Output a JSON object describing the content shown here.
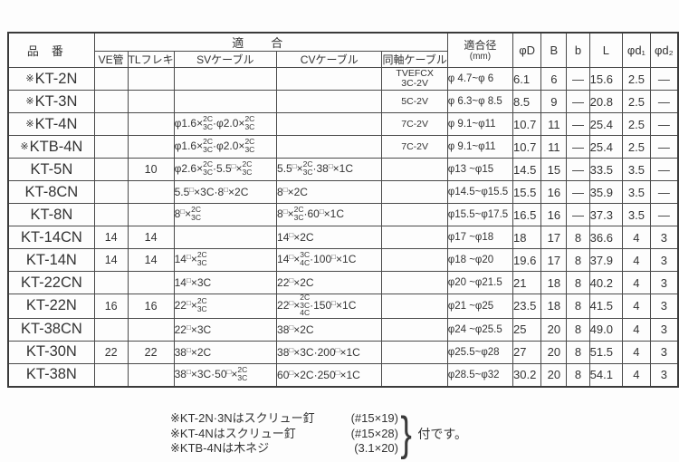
{
  "header": {
    "hinban": "品番",
    "tekigo": "適合",
    "sub": [
      "VE管",
      "TLフレキ",
      "SVケーブル",
      "CVケーブル",
      "同軸ケーブル"
    ],
    "dia_line1": "適合径",
    "dia_line2": "(mm)",
    "cols": [
      "φD",
      "B",
      "b",
      "L",
      "φd₁",
      "φd₂"
    ]
  },
  "rows": [
    [
      "※KT-2N",
      "",
      "",
      "",
      "",
      "TVEFCX\n3C-2V",
      "φ 4.7~φ 6",
      "6.1",
      "6",
      "—",
      "15.6",
      "2.5",
      "—"
    ],
    [
      "※KT-3N",
      "",
      "",
      "",
      "",
      "5C-2V",
      "φ 6.3~φ 8.5",
      "8.5",
      "9",
      "—",
      "20.8",
      "2.5",
      "—"
    ],
    [
      "※KT-4N",
      "",
      "",
      "φ1.6×[2C|3C]·φ2.0×[2C|3C]",
      "",
      "7C-2V",
      "φ 9.1~φ11",
      "10.7",
      "11",
      "—",
      "25.4",
      "2.5",
      "—"
    ],
    [
      "※KTB-4N",
      "",
      "",
      "φ1.6×[2C|3C]·φ2.0×[2C|3C]",
      "",
      "7C-2V",
      "φ 9.1~φ11",
      "10.7",
      "11",
      "—",
      "25.4",
      "2.5",
      "—"
    ],
    [
      "KT-5N",
      "",
      "10",
      "φ2.6×[2C|3C]·5.5□×[2C|3C]",
      "5.5□×[2C|3C]·38□×1C",
      "",
      "φ13 ~φ15",
      "14.5",
      "15",
      "—",
      "33.5",
      "3.5",
      "—"
    ],
    [
      "KT-8CN",
      "",
      "",
      "5.5□×3C·8□×2C",
      "8□×2C",
      "",
      "φ14.5~φ15.5",
      "15.5",
      "16",
      "—",
      "35.9",
      "3.5",
      "—"
    ],
    [
      "KT-8N",
      "",
      "",
      "8□×[2C|3C]",
      "8□×[2C|3C]·60□×1C",
      "",
      "φ15.5~φ17.5",
      "16.5",
      "16",
      "—",
      "37.3",
      "3.5",
      "—"
    ],
    [
      "KT-14CN",
      "14",
      "14",
      "",
      "14□×2C",
      "",
      "φ17 ~φ18",
      "18",
      "17",
      "8",
      "36.6",
      "4",
      "3"
    ],
    [
      "KT-14N",
      "14",
      "14",
      "14□×[2C|3C]",
      "14□×[3C|4C]·100□×1C",
      "",
      "φ18 ~φ20",
      "19.6",
      "17",
      "8",
      "37.9",
      "4",
      "3"
    ],
    [
      "KT-22CN",
      "",
      "",
      "14□×3C",
      "22□×2C",
      "",
      "φ20 ~φ21.5",
      "21",
      "18",
      "8",
      "40.2",
      "4",
      "3"
    ],
    [
      "KT-22N",
      "16",
      "16",
      "22□×[2C|3C]",
      "22□×[2C|3C|4C]·150□×1C",
      "",
      "φ21 ~φ25",
      "23.5",
      "18",
      "8",
      "41.5",
      "4",
      "3"
    ],
    [
      "KT-38CN",
      "",
      "",
      "22□×3C",
      "38□×2C",
      "",
      "φ24 ~φ25.5",
      "25",
      "20",
      "8",
      "49.0",
      "4",
      "3"
    ],
    [
      "KT-30N",
      "22",
      "22",
      "38□×2C",
      "38□×3C·200□×1C",
      "",
      "φ25.5~φ28",
      "27",
      "20",
      "8",
      "51.5",
      "4",
      "3"
    ],
    [
      "KT-38N",
      "",
      "",
      "38□×3C·50□×[2C|3C]",
      "60□×2C·250□×1C",
      "",
      "φ28.5~φ32",
      "30.2",
      "20",
      "8",
      "54.1",
      "4",
      "3"
    ]
  ],
  "notes": {
    "items": [
      {
        "left": "※KT-2N·3Nはスクリュー釘",
        "right": "(#15×19)"
      },
      {
        "left": "※KT-4Nはスクリュー釘",
        "right": "(#15×28)"
      },
      {
        "left": "※KTB-4Nは木ネジ",
        "right": "(3.1×20)"
      }
    ],
    "brace": "}",
    "suffix": "付です。"
  }
}
